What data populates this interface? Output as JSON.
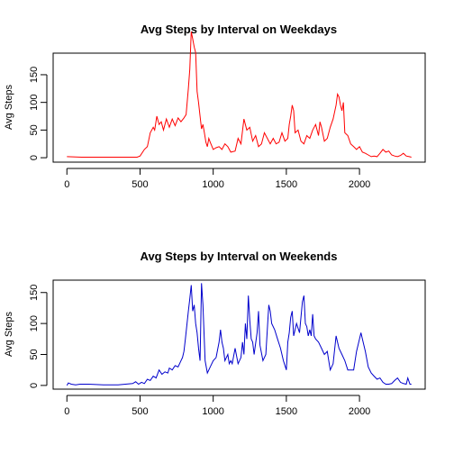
{
  "chart_data": [
    {
      "type": "line",
      "title": "Avg Steps by Interval on Weekdays",
      "xlabel": "",
      "ylabel": "Avg Steps",
      "color": "#ff0000",
      "xlim": [
        -94,
        2449
      ],
      "ylim": [
        -8,
        189
      ],
      "xticks": [
        0,
        500,
        1000,
        1500,
        2000
      ],
      "yticks": [
        0,
        50,
        100,
        150
      ],
      "points": [
        [
          0,
          2
        ],
        [
          100,
          1
        ],
        [
          200,
          1
        ],
        [
          300,
          1
        ],
        [
          400,
          1
        ],
        [
          480,
          1
        ],
        [
          500,
          3
        ],
        [
          530,
          15
        ],
        [
          550,
          20
        ],
        [
          570,
          45
        ],
        [
          590,
          55
        ],
        [
          600,
          50
        ],
        [
          615,
          75
        ],
        [
          630,
          60
        ],
        [
          645,
          65
        ],
        [
          660,
          50
        ],
        [
          680,
          70
        ],
        [
          700,
          55
        ],
        [
          720,
          70
        ],
        [
          740,
          58
        ],
        [
          760,
          72
        ],
        [
          780,
          65
        ],
        [
          800,
          72
        ],
        [
          815,
          78
        ],
        [
          830,
          125
        ],
        [
          840,
          160
        ],
        [
          850,
          228
        ],
        [
          860,
          215
        ],
        [
          870,
          200
        ],
        [
          880,
          190
        ],
        [
          890,
          120
        ],
        [
          900,
          100
        ],
        [
          910,
          75
        ],
        [
          920,
          52
        ],
        [
          930,
          60
        ],
        [
          940,
          45
        ],
        [
          950,
          28
        ],
        [
          960,
          20
        ],
        [
          970,
          35
        ],
        [
          980,
          28
        ],
        [
          1000,
          15
        ],
        [
          1020,
          18
        ],
        [
          1040,
          20
        ],
        [
          1060,
          15
        ],
        [
          1080,
          25
        ],
        [
          1100,
          20
        ],
        [
          1120,
          10
        ],
        [
          1150,
          12
        ],
        [
          1170,
          35
        ],
        [
          1190,
          25
        ],
        [
          1210,
          70
        ],
        [
          1220,
          60
        ],
        [
          1230,
          50
        ],
        [
          1250,
          55
        ],
        [
          1270,
          30
        ],
        [
          1290,
          40
        ],
        [
          1310,
          20
        ],
        [
          1330,
          25
        ],
        [
          1350,
          45
        ],
        [
          1370,
          35
        ],
        [
          1390,
          25
        ],
        [
          1410,
          35
        ],
        [
          1430,
          25
        ],
        [
          1450,
          28
        ],
        [
          1470,
          45
        ],
        [
          1490,
          30
        ],
        [
          1510,
          35
        ],
        [
          1520,
          60
        ],
        [
          1530,
          75
        ],
        [
          1540,
          95
        ],
        [
          1550,
          85
        ],
        [
          1560,
          45
        ],
        [
          1580,
          50
        ],
        [
          1600,
          30
        ],
        [
          1620,
          25
        ],
        [
          1640,
          40
        ],
        [
          1660,
          35
        ],
        [
          1680,
          50
        ],
        [
          1700,
          60
        ],
        [
          1710,
          50
        ],
        [
          1720,
          40
        ],
        [
          1730,
          65
        ],
        [
          1740,
          55
        ],
        [
          1760,
          30
        ],
        [
          1780,
          35
        ],
        [
          1800,
          55
        ],
        [
          1820,
          70
        ],
        [
          1840,
          95
        ],
        [
          1850,
          115
        ],
        [
          1860,
          110
        ],
        [
          1870,
          95
        ],
        [
          1880,
          85
        ],
        [
          1890,
          100
        ],
        [
          1900,
          45
        ],
        [
          1920,
          40
        ],
        [
          1940,
          25
        ],
        [
          1960,
          20
        ],
        [
          1980,
          15
        ],
        [
          2000,
          20
        ],
        [
          2020,
          10
        ],
        [
          2040,
          8
        ],
        [
          2060,
          5
        ],
        [
          2080,
          2
        ],
        [
          2100,
          3
        ],
        [
          2120,
          2
        ],
        [
          2140,
          8
        ],
        [
          2160,
          15
        ],
        [
          2180,
          10
        ],
        [
          2200,
          12
        ],
        [
          2220,
          5
        ],
        [
          2240,
          3
        ],
        [
          2260,
          2
        ],
        [
          2280,
          4
        ],
        [
          2300,
          8
        ],
        [
          2320,
          3
        ],
        [
          2340,
          2
        ],
        [
          2355,
          1
        ]
      ]
    },
    {
      "type": "line",
      "title": "Avg Steps by Interval on Weekends",
      "xlabel": "",
      "ylabel": "Avg Steps",
      "color": "#0000cc",
      "xlim": [
        -94,
        2449
      ],
      "ylim": [
        -6,
        170
      ],
      "xticks": [
        0,
        500,
        1000,
        1500,
        2000
      ],
      "yticks": [
        0,
        50,
        100,
        150
      ],
      "points": [
        [
          0,
          0
        ],
        [
          10,
          4
        ],
        [
          30,
          2
        ],
        [
          60,
          1
        ],
        [
          90,
          2
        ],
        [
          150,
          2
        ],
        [
          250,
          1
        ],
        [
          350,
          1
        ],
        [
          400,
          2
        ],
        [
          450,
          3
        ],
        [
          470,
          6
        ],
        [
          490,
          2
        ],
        [
          510,
          5
        ],
        [
          530,
          3
        ],
        [
          550,
          10
        ],
        [
          570,
          8
        ],
        [
          590,
          15
        ],
        [
          610,
          12
        ],
        [
          630,
          25
        ],
        [
          650,
          18
        ],
        [
          670,
          22
        ],
        [
          690,
          20
        ],
        [
          700,
          28
        ],
        [
          720,
          25
        ],
        [
          740,
          32
        ],
        [
          760,
          30
        ],
        [
          780,
          40
        ],
        [
          790,
          45
        ],
        [
          800,
          55
        ],
        [
          810,
          75
        ],
        [
          830,
          120
        ],
        [
          840,
          140
        ],
        [
          850,
          162
        ],
        [
          860,
          120
        ],
        [
          870,
          130
        ],
        [
          880,
          100
        ],
        [
          890,
          85
        ],
        [
          900,
          60
        ],
        [
          910,
          40
        ],
        [
          920,
          165
        ],
        [
          930,
          130
        ],
        [
          945,
          40
        ],
        [
          960,
          20
        ],
        [
          980,
          30
        ],
        [
          1000,
          40
        ],
        [
          1020,
          45
        ],
        [
          1040,
          70
        ],
        [
          1050,
          90
        ],
        [
          1060,
          70
        ],
        [
          1070,
          60
        ],
        [
          1080,
          40
        ],
        [
          1090,
          45
        ],
        [
          1100,
          50
        ],
        [
          1110,
          35
        ],
        [
          1120,
          40
        ],
        [
          1130,
          35
        ],
        [
          1150,
          60
        ],
        [
          1170,
          35
        ],
        [
          1190,
          45
        ],
        [
          1200,
          70
        ],
        [
          1210,
          50
        ],
        [
          1220,
          100
        ],
        [
          1230,
          75
        ],
        [
          1240,
          145
        ],
        [
          1250,
          105
        ],
        [
          1260,
          75
        ],
        [
          1270,
          70
        ],
        [
          1280,
          50
        ],
        [
          1300,
          85
        ],
        [
          1310,
          120
        ],
        [
          1320,
          65
        ],
        [
          1340,
          40
        ],
        [
          1360,
          50
        ],
        [
          1380,
          130
        ],
        [
          1390,
          120
        ],
        [
          1400,
          100
        ],
        [
          1420,
          90
        ],
        [
          1440,
          75
        ],
        [
          1460,
          60
        ],
        [
          1480,
          40
        ],
        [
          1500,
          25
        ],
        [
          1510,
          70
        ],
        [
          1520,
          85
        ],
        [
          1530,
          110
        ],
        [
          1540,
          120
        ],
        [
          1550,
          80
        ],
        [
          1570,
          100
        ],
        [
          1590,
          85
        ],
        [
          1610,
          135
        ],
        [
          1620,
          145
        ],
        [
          1630,
          100
        ],
        [
          1640,
          95
        ],
        [
          1650,
          80
        ],
        [
          1660,
          90
        ],
        [
          1670,
          80
        ],
        [
          1680,
          115
        ],
        [
          1690,
          80
        ],
        [
          1700,
          75
        ],
        [
          1720,
          70
        ],
        [
          1740,
          60
        ],
        [
          1760,
          50
        ],
        [
          1780,
          55
        ],
        [
          1800,
          25
        ],
        [
          1820,
          35
        ],
        [
          1840,
          80
        ],
        [
          1860,
          60
        ],
        [
          1880,
          50
        ],
        [
          1900,
          40
        ],
        [
          1920,
          25
        ],
        [
          1940,
          25
        ],
        [
          1960,
          25
        ],
        [
          1980,
          55
        ],
        [
          2000,
          75
        ],
        [
          2010,
          85
        ],
        [
          2020,
          75
        ],
        [
          2040,
          55
        ],
        [
          2060,
          30
        ],
        [
          2080,
          20
        ],
        [
          2100,
          15
        ],
        [
          2120,
          10
        ],
        [
          2140,
          12
        ],
        [
          2160,
          5
        ],
        [
          2180,
          2
        ],
        [
          2200,
          2
        ],
        [
          2220,
          3
        ],
        [
          2240,
          8
        ],
        [
          2260,
          12
        ],
        [
          2280,
          5
        ],
        [
          2300,
          3
        ],
        [
          2320,
          2
        ],
        [
          2330,
          12
        ],
        [
          2345,
          2
        ],
        [
          2355,
          2
        ]
      ]
    }
  ]
}
